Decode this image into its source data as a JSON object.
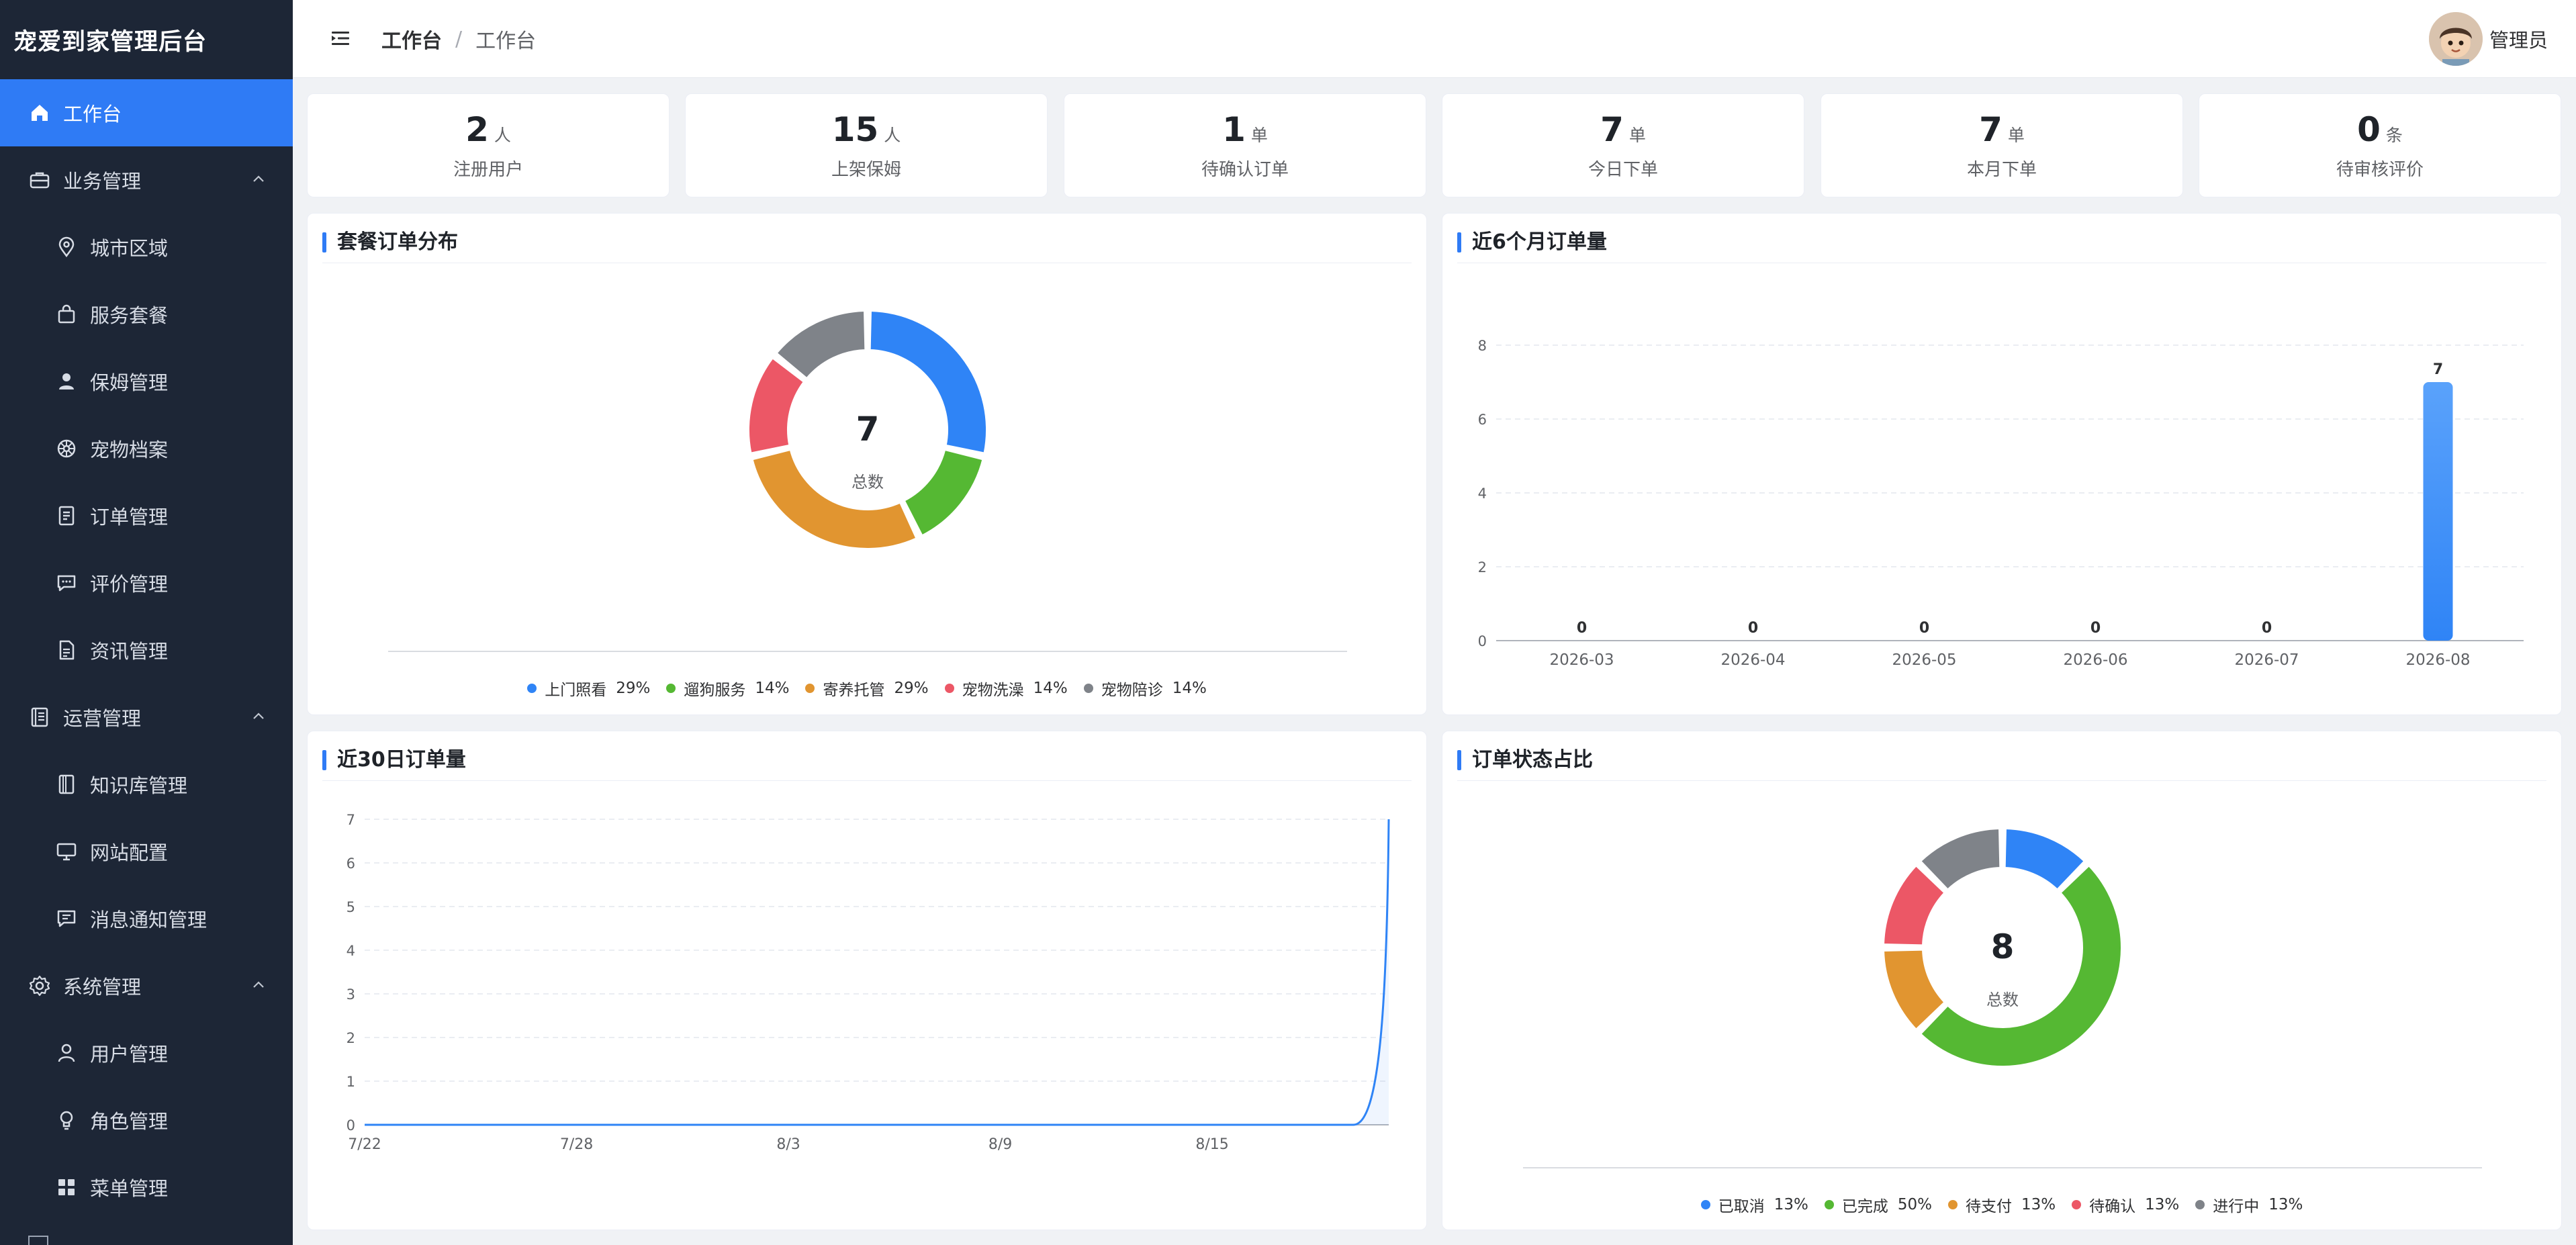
{
  "app": {
    "title": "宠爱到家管理后台"
  },
  "header": {
    "breadcrumb": [
      "工作台",
      "工作台"
    ],
    "separator": "/",
    "user_name": "管理员"
  },
  "sidebar": {
    "items": [
      {
        "label": "工作台",
        "icon": "home-icon",
        "level": "top",
        "active": true
      },
      {
        "label": "业务管理",
        "icon": "briefcase-icon",
        "level": "top",
        "expanded": true
      },
      {
        "label": "城市区域",
        "icon": "location-pin-icon",
        "level": "sub"
      },
      {
        "label": "服务套餐",
        "icon": "shopping-bag-icon",
        "level": "sub"
      },
      {
        "label": "保姆管理",
        "icon": "user-solid-icon",
        "level": "sub"
      },
      {
        "label": "宠物档案",
        "icon": "paw-wheel-icon",
        "level": "sub"
      },
      {
        "label": "订单管理",
        "icon": "document-list-icon",
        "level": "sub"
      },
      {
        "label": "评价管理",
        "icon": "chat-bubble-icon",
        "level": "sub"
      },
      {
        "label": "资讯管理",
        "icon": "document-icon",
        "level": "sub"
      },
      {
        "label": "运营管理",
        "icon": "notebook-icon",
        "level": "top",
        "expanded": true
      },
      {
        "label": "知识库管理",
        "icon": "book-icon",
        "level": "sub"
      },
      {
        "label": "网站配置",
        "icon": "monitor-icon",
        "level": "sub"
      },
      {
        "label": "消息通知管理",
        "icon": "message-icon",
        "level": "sub"
      },
      {
        "label": "系统管理",
        "icon": "gear-icon",
        "level": "top",
        "expanded": true
      },
      {
        "label": "用户管理",
        "icon": "user-outline-icon",
        "level": "sub"
      },
      {
        "label": "角色管理",
        "icon": "lightbulb-icon",
        "level": "sub"
      },
      {
        "label": "菜单管理",
        "icon": "grid-icon",
        "level": "sub"
      }
    ]
  },
  "stats": [
    {
      "value": "2",
      "unit": "人",
      "label": "注册用户"
    },
    {
      "value": "15",
      "unit": "人",
      "label": "上架保姆"
    },
    {
      "value": "1",
      "unit": "单",
      "label": "待确认订单"
    },
    {
      "value": "7",
      "unit": "单",
      "label": "今日下单"
    },
    {
      "value": "7",
      "unit": "单",
      "label": "本月下单"
    },
    {
      "value": "0",
      "unit": "条",
      "label": "待审核评价"
    }
  ],
  "panels": {
    "package": {
      "title": "套餐订单分布"
    },
    "monthly": {
      "title": "近6个月订单量"
    },
    "daily": {
      "title": "近30日订单量"
    },
    "status": {
      "title": "订单状态占比"
    }
  },
  "chart_data": [
    {
      "type": "pie",
      "donut": true,
      "title": "套餐订单分布",
      "center_value": "7",
      "center_label": "总数",
      "legend_position": "bottom",
      "slices": [
        {
          "name": "上门照看",
          "value": 2,
          "pct": "29%",
          "color": "#2f84f6"
        },
        {
          "name": "遛狗服务",
          "value": 1,
          "pct": "14%",
          "color": "#55b833"
        },
        {
          "name": "寄养托管",
          "value": 2,
          "pct": "29%",
          "color": "#e19530"
        },
        {
          "name": "宠物洗澡",
          "value": 1,
          "pct": "14%",
          "color": "#ec5766"
        },
        {
          "name": "宠物陪诊",
          "value": 1,
          "pct": "14%",
          "color": "#7f8389"
        }
      ]
    },
    {
      "type": "bar",
      "title": "近6个月订单量",
      "categories": [
        "2026-03",
        "2026-04",
        "2026-05",
        "2026-06",
        "2026-07",
        "2026-08"
      ],
      "values": [
        0,
        0,
        0,
        0,
        0,
        7
      ],
      "ylim": [
        0,
        8
      ],
      "yticks": [
        0,
        2,
        4,
        6,
        8
      ],
      "grid": true,
      "color": "#2f84f6"
    },
    {
      "type": "line",
      "title": "近30日订单量",
      "x": [
        "7/22",
        "7/23",
        "7/24",
        "7/25",
        "7/26",
        "7/27",
        "7/28",
        "7/29",
        "7/30",
        "7/31",
        "8/1",
        "8/2",
        "8/3",
        "8/4",
        "8/5",
        "8/6",
        "8/7",
        "8/8",
        "8/9",
        "8/10",
        "8/11",
        "8/12",
        "8/13",
        "8/14",
        "8/15",
        "8/16",
        "8/17",
        "8/18",
        "8/19",
        "8/20"
      ],
      "x_tick_labels": [
        "7/22",
        "7/28",
        "8/3",
        "8/9",
        "8/15"
      ],
      "values": [
        0,
        0,
        0,
        0,
        0,
        0,
        0,
        0,
        0,
        0,
        0,
        0,
        0,
        0,
        0,
        0,
        0,
        0,
        0,
        0,
        0,
        0,
        0,
        0,
        0,
        0,
        0,
        0,
        0,
        7
      ],
      "ylim": [
        0,
        7
      ],
      "yticks": [
        0,
        1,
        2,
        3,
        4,
        5,
        6,
        7
      ],
      "grid": true,
      "color": "#2f84f6"
    },
    {
      "type": "pie",
      "donut": true,
      "title": "订单状态占比",
      "center_value": "8",
      "center_label": "总数",
      "legend_position": "bottom",
      "slices": [
        {
          "name": "已取消",
          "value": 1,
          "pct": "13%",
          "color": "#2f84f6"
        },
        {
          "name": "已完成",
          "value": 4,
          "pct": "50%",
          "color": "#55b833"
        },
        {
          "name": "待支付",
          "value": 1,
          "pct": "13%",
          "color": "#e19530"
        },
        {
          "name": "待确认",
          "value": 1,
          "pct": "13%",
          "color": "#ec5766"
        },
        {
          "name": "进行中",
          "value": 1,
          "pct": "13%",
          "color": "#7f8389"
        }
      ]
    }
  ]
}
